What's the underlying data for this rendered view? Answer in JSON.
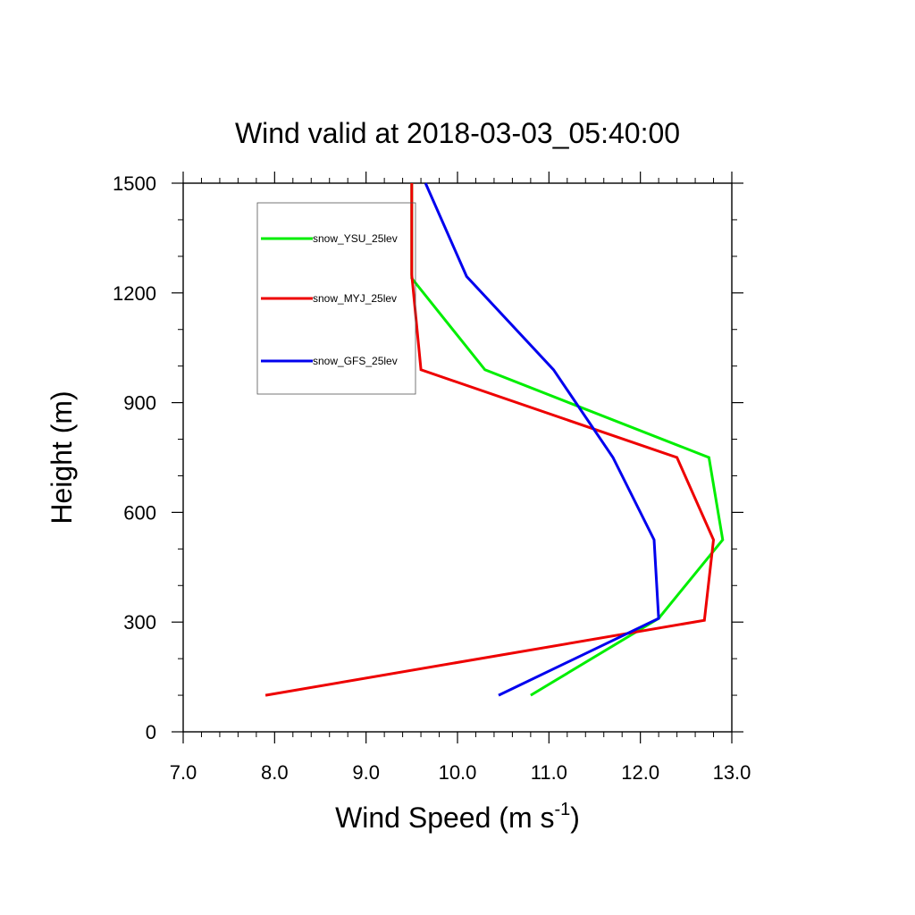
{
  "chart_data": {
    "type": "line",
    "title": "Wind valid at 2018-03-03_05:40:00",
    "xlabel": "Wind Speed (m s",
    "xlabel_sup": "-1",
    "xlabel_end": ")",
    "ylabel": "Height (m)",
    "xlim": [
      7.0,
      13.0
    ],
    "ylim": [
      0,
      1500
    ],
    "xticks": [
      "7.0",
      "8.0",
      "9.0",
      "10.0",
      "11.0",
      "12.0",
      "13.0"
    ],
    "yticks": [
      "0",
      "300",
      "600",
      "900",
      "1200",
      "1500"
    ],
    "legend_position": "top-left",
    "grid": false,
    "series": [
      {
        "name": "snow_YSU_25lev",
        "color": "#00ee00",
        "points": [
          [
            10.8,
            100
          ],
          [
            12.2,
            310
          ],
          [
            12.9,
            525
          ],
          [
            12.75,
            750
          ],
          [
            10.3,
            990
          ],
          [
            9.5,
            1240
          ],
          [
            9.5,
            1500
          ]
        ]
      },
      {
        "name": "snow_MYJ_25lev",
        "color": "#ee0000",
        "points": [
          [
            7.9,
            100
          ],
          [
            12.7,
            305
          ],
          [
            12.8,
            525
          ],
          [
            12.4,
            750
          ],
          [
            9.6,
            990
          ],
          [
            9.5,
            1250
          ],
          [
            9.5,
            1500
          ]
        ]
      },
      {
        "name": "snow_GFS_25lev",
        "color": "#0000ee",
        "points": [
          [
            10.45,
            100
          ],
          [
            12.2,
            310
          ],
          [
            12.15,
            525
          ],
          [
            11.7,
            750
          ],
          [
            11.05,
            990
          ],
          [
            10.1,
            1245
          ],
          [
            9.65,
            1500
          ]
        ]
      }
    ]
  }
}
